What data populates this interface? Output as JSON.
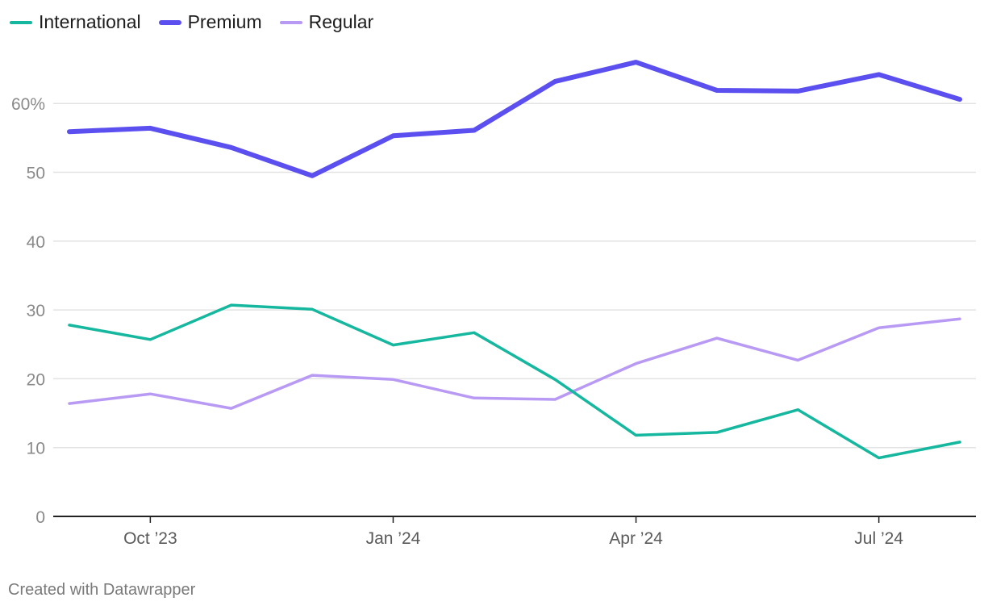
{
  "chart_data": {
    "type": "line",
    "title": "",
    "xlabel": "",
    "ylabel": "",
    "x": [
      "2023-09",
      "2023-10",
      "2023-11",
      "2023-12",
      "2024-01",
      "2024-02",
      "2024-03",
      "2024-04",
      "2024-05",
      "2024-06",
      "2024-07",
      "2024-08"
    ],
    "x_tick_labels": [
      {
        "x": "2023-10",
        "label": "Oct ’23"
      },
      {
        "x": "2024-01",
        "label": "Jan ’24"
      },
      {
        "x": "2024-04",
        "label": "Apr ’24"
      },
      {
        "x": "2024-07",
        "label": "Jul ’24"
      }
    ],
    "ylim": [
      0,
      68
    ],
    "y_ticks": [
      0,
      10,
      20,
      30,
      40,
      50,
      60
    ],
    "y_tick_labels": [
      "0",
      "10",
      "20",
      "30",
      "40",
      "50",
      "60%"
    ],
    "grid": true,
    "legend_position": "top-left",
    "series": [
      {
        "name": "International",
        "color": "#15b79e",
        "line_style": "medium",
        "values": [
          27.8,
          25.7,
          30.7,
          30.1,
          24.9,
          26.7,
          19.9,
          11.8,
          12.2,
          15.5,
          8.5,
          10.8
        ]
      },
      {
        "name": "Premium",
        "color": "#5b4ff0",
        "line_style": "thick",
        "values": [
          55.9,
          56.4,
          53.6,
          49.5,
          55.3,
          56.1,
          63.2,
          66.0,
          61.9,
          61.8,
          64.2,
          60.6
        ]
      },
      {
        "name": "Regular",
        "color": "#b89af4",
        "line_style": "medium",
        "values": [
          16.4,
          17.8,
          15.7,
          20.5,
          19.9,
          17.2,
          17.0,
          22.2,
          25.9,
          22.7,
          27.4,
          28.7
        ]
      }
    ]
  },
  "footer": {
    "credit": "Created with Datawrapper"
  }
}
